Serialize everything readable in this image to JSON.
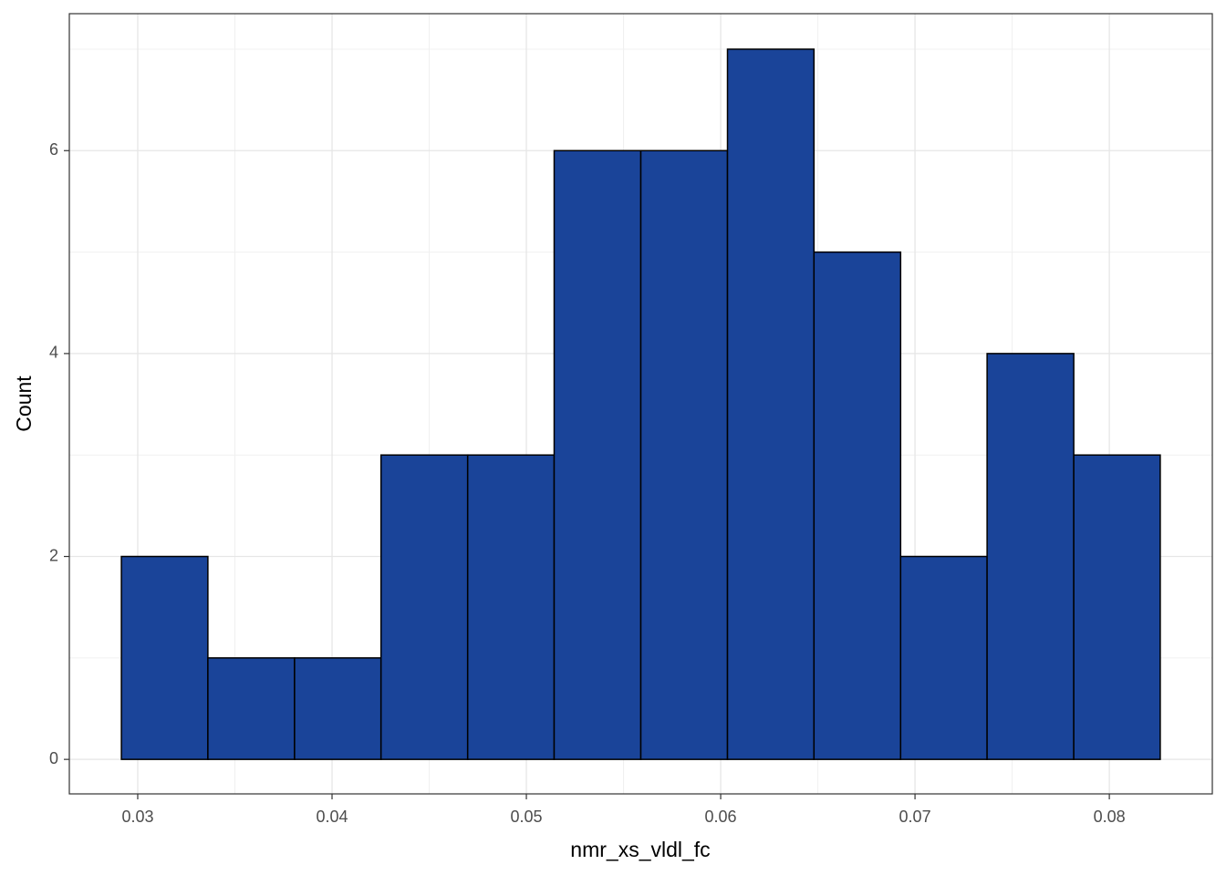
{
  "chart_data": {
    "type": "histogram",
    "x_label": "nmr_xs_vldl_fc",
    "y_label": "Count",
    "bins": [
      0.02916,
      0.03361,
      0.03807,
      0.04252,
      0.04698,
      0.05143,
      0.05589,
      0.06035,
      0.0648,
      0.06926,
      0.07371,
      0.07817,
      0.08262
    ],
    "values": [
      2,
      1,
      1,
      3,
      3,
      6,
      6,
      7,
      5,
      2,
      4,
      3
    ],
    "color": "#1a4499",
    "edge_color": "#000000",
    "xlim": [
      0.02648,
      0.0853
    ],
    "ylim": [
      -0.34,
      7.35
    ],
    "xticks": [
      0.03,
      0.04,
      0.05,
      0.06,
      0.07,
      0.08
    ],
    "yticks": [
      0,
      2,
      4,
      6
    ],
    "minor_xticks": [
      0.035,
      0.045,
      0.055,
      0.065,
      0.075
    ],
    "minor_yticks": [
      1,
      3,
      5,
      7
    ],
    "grid": true
  }
}
